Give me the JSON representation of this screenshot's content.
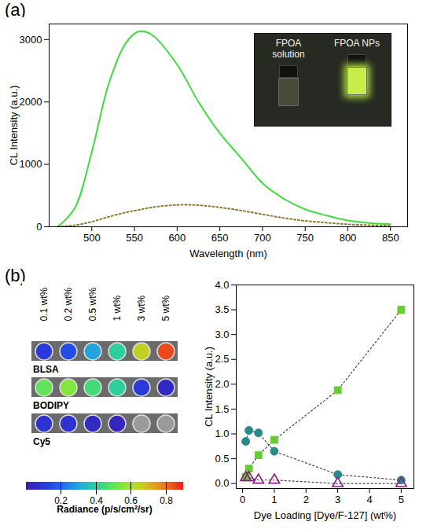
{
  "chart_data": [
    {
      "type": "line",
      "panel": "(a)",
      "x_label": "Wavelength (nm)",
      "y_label": "CL Intensity (a.u.)",
      "x": [
        460,
        480,
        500,
        520,
        540,
        555,
        570,
        600,
        625,
        650,
        675,
        700,
        725,
        750,
        775,
        800,
        825,
        850
      ],
      "series": [
        {
          "color": "#3fdc3f",
          "line_style": "solid",
          "values": [
            0,
            300,
            1200,
            2300,
            2950,
            3130,
            3080,
            2600,
            2000,
            1500,
            1100,
            700,
            450,
            280,
            180,
            100,
            60,
            40
          ]
        },
        {
          "color": "#8c7a2e",
          "line_style": "dotted",
          "values": [
            0,
            25,
            80,
            160,
            230,
            270,
            310,
            350,
            345,
            310,
            260,
            200,
            140,
            95,
            65,
            40,
            25,
            15
          ]
        }
      ],
      "xlim": [
        450,
        870
      ],
      "xticks": [
        500,
        550,
        600,
        650,
        700,
        750,
        800,
        850
      ],
      "ylim": [
        0,
        3250
      ],
      "yticks": [
        0,
        1000,
        2000,
        3000
      ],
      "annotations": [
        "FPOA solution",
        "FPOA NPs"
      ]
    },
    {
      "type": "heatmap",
      "panel": "(b)",
      "x": [
        "0.1 wt%",
        "0.2 wt%",
        "0.5 wt%",
        "1 wt%",
        "3 wt%",
        "5 wt%"
      ],
      "y": [
        "BLSA",
        "BODIPY",
        "Cy5"
      ],
      "cells": [
        [
          0.1,
          0.15,
          0.3,
          0.4,
          0.65,
          0.85
        ],
        [
          0.5,
          0.55,
          0.45,
          0.4,
          0.1,
          0.05
        ],
        [
          0.08,
          0.08,
          0.05,
          0.03,
          null,
          null
        ]
      ],
      "color_range": [
        0,
        0.9
      ],
      "color_ticks": [
        0.2,
        0.4,
        0.6,
        0.8
      ],
      "color_label": "Radiance (p/s/cm²/sr)"
    },
    {
      "type": "scatter",
      "x_label": "Dye Loading [Dye/F-127] (wt%)",
      "y_label": "CL Intensity (a.u.)",
      "x": [
        0.1,
        0.2,
        0.5,
        1,
        3,
        5
      ],
      "series": [
        {
          "color": "#66cc33",
          "marker": "square",
          "line_style": "dotted",
          "values": [
            0.13,
            0.3,
            0.57,
            0.88,
            1.88,
            3.5
          ]
        },
        {
          "color": "#2a8a8a",
          "marker": "circle",
          "line_style": "dotted",
          "values": [
            0.85,
            1.07,
            1.02,
            0.65,
            0.18,
            0.07
          ]
        },
        {
          "color": "#8b1a8b",
          "marker": "triangle-open",
          "line_style": "dotted",
          "values": [
            0.12,
            0.12,
            0.07,
            0.07,
            0,
            0
          ]
        }
      ],
      "xlim": [
        -0.2,
        5.4
      ],
      "xticks": [
        0,
        1,
        2,
        3,
        4,
        5
      ],
      "ylim": [
        -0.1,
        4
      ],
      "yticks": [
        {
          "value": 0,
          "label": "0.0"
        },
        0.5,
        {
          "value": 1,
          "label": "1.0"
        },
        1.5,
        {
          "value": 2,
          "label": "2.0"
        },
        2.5,
        {
          "value": 3,
          "label": "3.0"
        },
        3.5,
        {
          "value": 4,
          "label": "4.0"
        }
      ]
    }
  ]
}
